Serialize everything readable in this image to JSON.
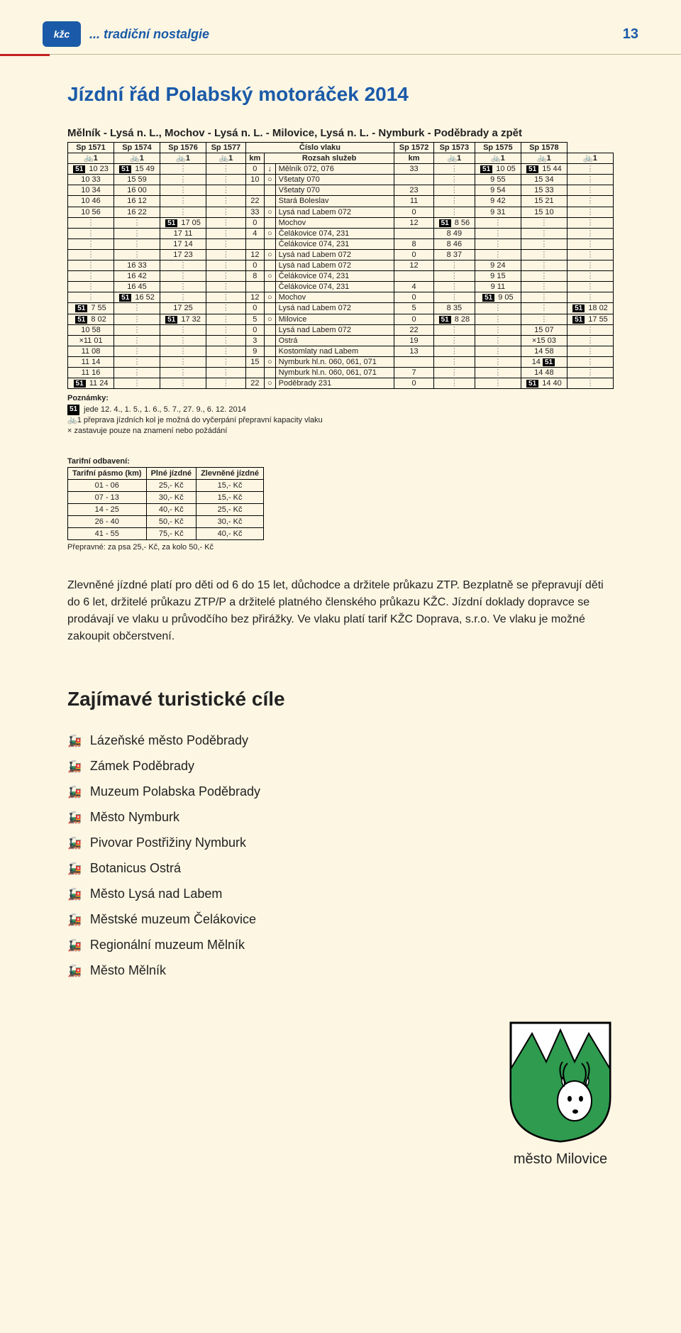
{
  "header": {
    "logo_text": "kžc",
    "tagline": "... tradiční nostalgie",
    "page_number": "13"
  },
  "title": "Jízdní řád Polabský motoráček 2014",
  "route_title": "Mělník - Lysá n. L., Mochov - Lysá n. L. - Milovice, Lysá n. L. - Nymburk - Poděbrady a zpět",
  "timetable": {
    "train_headers_left": [
      "Sp 1571",
      "Sp 1574",
      "Sp 1576",
      "Sp 1577"
    ],
    "train_headers_right": [
      "Sp 1572",
      "Sp 1573",
      "Sp 1575",
      "Sp 1578"
    ],
    "center_labels": {
      "cislo": "Číslo vlaku",
      "rozsah": "Rozsah služeb",
      "km": "km"
    },
    "rows": [
      {
        "l": [
          "51 10 23",
          "51 15 49",
          "",
          ""
        ],
        "km_l": "0",
        "sym": "↓",
        "station": "Mělník 072, 076",
        "km_r": "33",
        "r": [
          "",
          "51 10 05",
          "51 15 44",
          ""
        ]
      },
      {
        "l": [
          "10 33",
          "15 59",
          "",
          ""
        ],
        "km_l": "10",
        "sym": "○",
        "station": "Všetaty 070",
        "km_r": "",
        "r": [
          "",
          "9 55",
          "15 34",
          ""
        ]
      },
      {
        "l": [
          "10 34",
          "16 00",
          "",
          ""
        ],
        "km_l": "",
        "sym": "",
        "station": "Všetaty 070",
        "km_r": "23",
        "r": [
          "",
          "9 54",
          "15 33",
          ""
        ]
      },
      {
        "l": [
          "10 46",
          "16 12",
          "",
          ""
        ],
        "km_l": "22",
        "sym": "",
        "station": "Stará Boleslav",
        "km_r": "11",
        "r": [
          "",
          "9 42",
          "15 21",
          ""
        ]
      },
      {
        "l": [
          "10 56",
          "16 22",
          "",
          ""
        ],
        "km_l": "33",
        "sym": "○",
        "station": "Lysá nad Labem 072",
        "km_r": "0",
        "r": [
          "",
          "9 31",
          "15 10",
          ""
        ]
      },
      {
        "l": [
          "",
          "",
          "51 17 05",
          ""
        ],
        "km_l": "0",
        "sym": "",
        "station": "Mochov",
        "km_r": "12",
        "r": [
          "51 8 56",
          "",
          "",
          ""
        ]
      },
      {
        "l": [
          "",
          "",
          "17 11",
          ""
        ],
        "km_l": "4",
        "sym": "○",
        "station": "Čelákovice 074, 231",
        "km_r": "",
        "r": [
          "8 49",
          "",
          "",
          ""
        ]
      },
      {
        "l": [
          "",
          "",
          "17 14",
          ""
        ],
        "km_l": "",
        "sym": "",
        "station": "Čelákovice 074, 231",
        "km_r": "8",
        "r": [
          "8 46",
          "",
          "",
          ""
        ]
      },
      {
        "l": [
          "",
          "",
          "17 23",
          ""
        ],
        "km_l": "12",
        "sym": "○",
        "station": "Lysá nad Labem 072",
        "km_r": "0",
        "r": [
          "8 37",
          "",
          "",
          ""
        ]
      },
      {
        "l": [
          "",
          "16 33",
          "",
          ""
        ],
        "km_l": "0",
        "sym": "",
        "station": "Lysá nad Labem 072",
        "km_r": "12",
        "r": [
          "",
          "9 24",
          "",
          ""
        ]
      },
      {
        "l": [
          "",
          "16 42",
          "",
          ""
        ],
        "km_l": "8",
        "sym": "○",
        "station": "Čelákovice 074, 231",
        "km_r": "",
        "r": [
          "",
          "9 15",
          "",
          ""
        ]
      },
      {
        "l": [
          "",
          "16 45",
          "",
          ""
        ],
        "km_l": "",
        "sym": "",
        "station": "Čelákovice 074, 231",
        "km_r": "4",
        "r": [
          "",
          "9 11",
          "",
          ""
        ]
      },
      {
        "l": [
          "",
          "51 16 52",
          "",
          ""
        ],
        "km_l": "12",
        "sym": "○",
        "station": "Mochov",
        "km_r": "0",
        "r": [
          "",
          "51 9 05",
          "",
          ""
        ]
      },
      {
        "l": [
          "51 7 55",
          "",
          "17 25",
          ""
        ],
        "km_l": "0",
        "sym": "",
        "station": "Lysá nad Labem 072",
        "km_r": "5",
        "r": [
          "8 35",
          "",
          "",
          "51 18 02"
        ]
      },
      {
        "l": [
          "51 8 02",
          "",
          "51 17 32",
          ""
        ],
        "km_l": "5",
        "sym": "○",
        "station": "Milovice",
        "km_r": "0",
        "r": [
          "51 8 28",
          "",
          "",
          "51 17 55"
        ]
      },
      {
        "l": [
          "10 58",
          "",
          "",
          ""
        ],
        "km_l": "0",
        "sym": "",
        "station": "Lysá nad Labem 072",
        "km_r": "22",
        "r": [
          "",
          "",
          "15 07",
          ""
        ]
      },
      {
        "l": [
          "×11 01",
          "",
          "",
          ""
        ],
        "km_l": "3",
        "sym": "",
        "station": "Ostrá",
        "km_r": "19",
        "r": [
          "",
          "",
          "×15 03",
          ""
        ]
      },
      {
        "l": [
          "11 08",
          "",
          "",
          ""
        ],
        "km_l": "9",
        "sym": "",
        "station": "Kostomlaty nad Labem",
        "km_r": "13",
        "r": [
          "",
          "",
          "14 58",
          ""
        ]
      },
      {
        "l": [
          "11 14",
          "",
          "",
          ""
        ],
        "km_l": "15",
        "sym": "○",
        "station": "Nymburk hl.n. 060, 061, 071",
        "km_r": "",
        "r": [
          "",
          "",
          "14 51",
          ""
        ]
      },
      {
        "l": [
          "11 16",
          "",
          "",
          ""
        ],
        "km_l": "",
        "sym": "",
        "station": "Nymburk hl.n. 060, 061, 071",
        "km_r": "7",
        "r": [
          "",
          "",
          "14 48",
          ""
        ]
      },
      {
        "l": [
          "51 11 24",
          "",
          "",
          ""
        ],
        "km_l": "22",
        "sym": "○",
        "station": "Poděbrady 231",
        "km_r": "0",
        "r": [
          "",
          "",
          "51 14 40",
          ""
        ]
      }
    ]
  },
  "notes": {
    "heading": "Poznámky:",
    "line1_prefix": "51",
    "line1": "jede 12. 4., 1. 5., 1. 6., 5. 7., 27. 9., 6. 12. 2014",
    "line2": "🚲1 přeprava jízdních kol je možná do vyčerpání přepravní kapacity vlaku",
    "line3": "× zastavuje pouze na znamení nebo požádání"
  },
  "fares": {
    "title": "Tarifní odbavení:",
    "headers": [
      "Tarifní pásmo (km)",
      "Plné jízdné",
      "Zlevněné jízdné"
    ],
    "rows": [
      [
        "01 - 06",
        "25,- Kč",
        "15,- Kč"
      ],
      [
        "07 - 13",
        "30,- Kč",
        "15,- Kč"
      ],
      [
        "14 - 25",
        "40,- Kč",
        "25,- Kč"
      ],
      [
        "26 - 40",
        "50,- Kč",
        "30,- Kč"
      ],
      [
        "41 - 55",
        "75,- Kč",
        "40,- Kč"
      ]
    ],
    "footnote": "Přepravné: za psa 25,- Kč, za kolo 50,- Kč"
  },
  "paragraph": "Zlevněné jízdné platí pro děti od 6 do 15 let, důchodce a držitele průkazu ZTP. Bezplatně se přepravují děti do 6 let, držitelé průkazu ZTP/P a držitelé platného členského průkazu KŽC. Jízdní doklady dopravce se prodávají ve vlaku u průvodčího bez přirážky. Ve vlaku platí tarif KŽC Doprava, s.r.o. Ve vlaku je možné zakoupit občerstvení.",
  "destinations": {
    "heading": "Zajímavé turistické cíle",
    "items": [
      "Lázeňské město Poděbrady",
      "Zámek Poděbrady",
      "Muzeum Polabska Poděbrady",
      "Město Nymburk",
      "Pivovar Postřižiny Nymburk",
      "Botanicus Ostrá",
      "Město Lysá nad Labem",
      "Městské muzeum Čelákovice",
      "Regionální muzeum Mělník",
      "Město Mělník"
    ]
  },
  "crest_label": "město Milovice",
  "colors": {
    "page_bg": "#fdf6e3",
    "brand_blue": "#1a5aa8",
    "accent_red": "#c42020",
    "shield_green": "#2e9b4f",
    "shield_border": "#000000"
  }
}
